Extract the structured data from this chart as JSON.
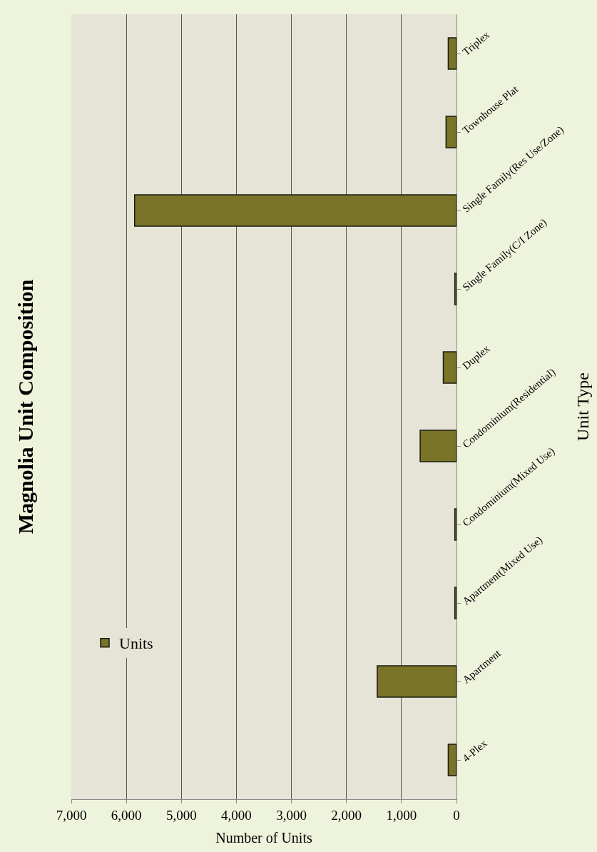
{
  "chart_data": {
    "type": "bar",
    "orientation": "horizontal",
    "title": "Magnolia Unit Composition",
    "xlabel": "Number of Units",
    "ylabel": "Unit Type",
    "categories": [
      "Triplex",
      "Townhouse Plat",
      "Single Family(Res Use/Zone)",
      "Single Family(C/I Zone)",
      "Duplex",
      "Condominium(Residential)",
      "Condominium(Mixed Use)",
      "Apartment(Mixed Use)",
      "Apartment",
      "4-Plex"
    ],
    "series": [
      {
        "name": "Units",
        "color": "#7a7428",
        "values": [
          150,
          190,
          5850,
          30,
          240,
          660,
          30,
          30,
          1440,
          150
        ]
      }
    ],
    "xlim": [
      7000,
      0
    ],
    "xticks": [
      {
        "value": 7000,
        "label": "7,000"
      },
      {
        "value": 6000,
        "label": "6,000"
      },
      {
        "value": 5000,
        "label": "5,000"
      },
      {
        "value": 4000,
        "label": "4,000"
      },
      {
        "value": 3000,
        "label": "3,000"
      },
      {
        "value": 2000,
        "label": "2,000"
      },
      {
        "value": 1000,
        "label": "1,000"
      },
      0
    ],
    "grid": "x",
    "legend": "bottom left"
  }
}
